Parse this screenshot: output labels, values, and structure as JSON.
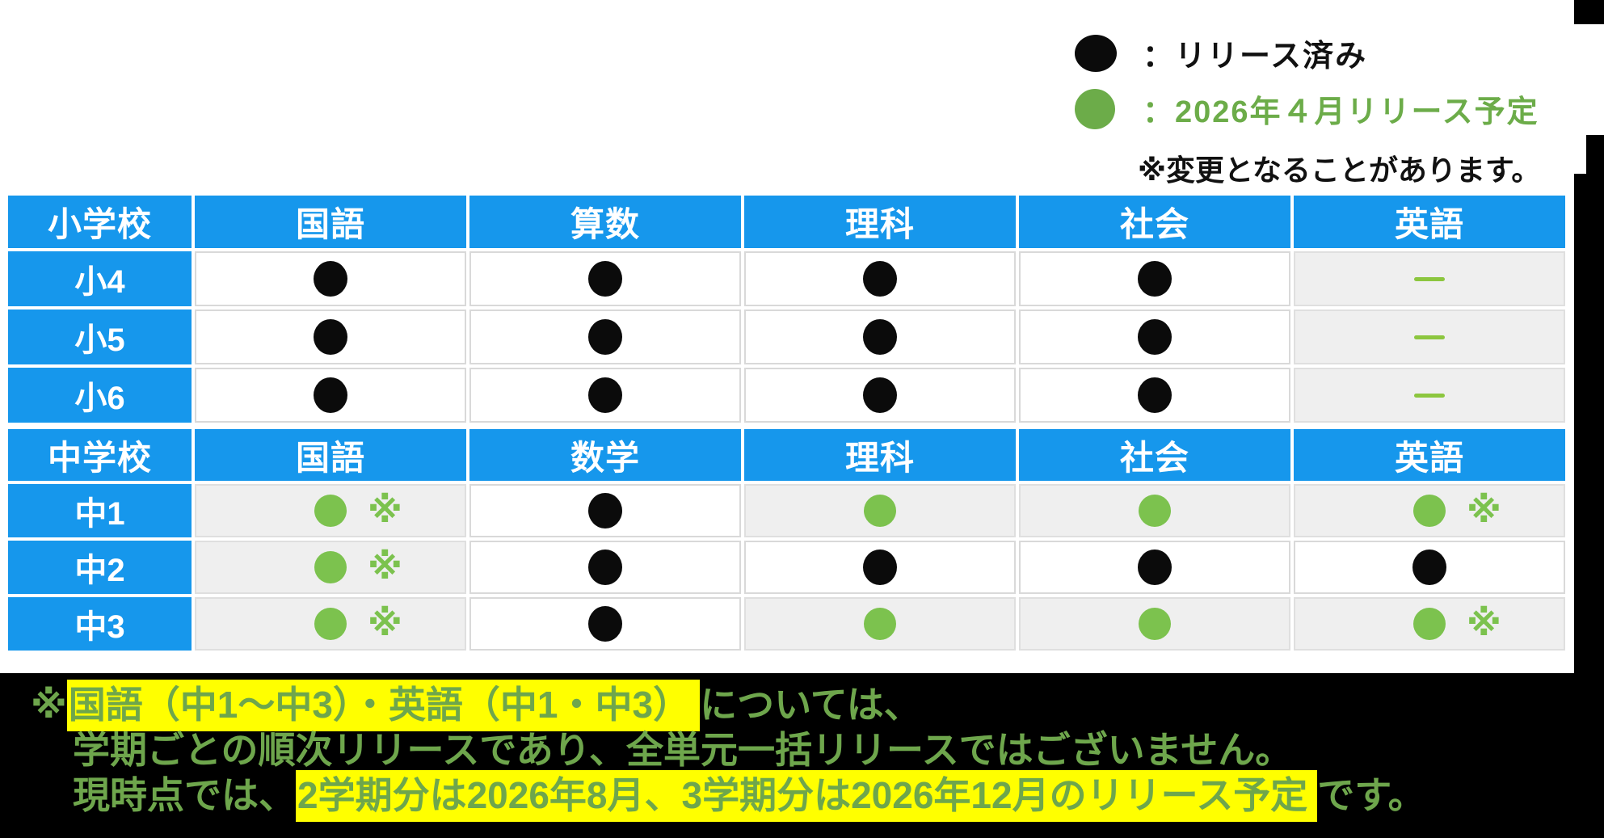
{
  "legend": {
    "items": [
      {
        "id": "released",
        "dot": "black",
        "label": "：リリース済み"
      },
      {
        "id": "planned",
        "dot": "green",
        "label": "：2026年４月リリース予定"
      }
    ],
    "note": "※変更となることがあります。"
  },
  "table": {
    "note_mark": "※",
    "sections": [
      {
        "id": "elementary",
        "headers": [
          "小学校",
          "国語",
          "算数",
          "理科",
          "社会",
          "英語"
        ],
        "rows": [
          {
            "grade": "小4",
            "cells": [
              {
                "mark": "dot-black"
              },
              {
                "mark": "dot-black"
              },
              {
                "mark": "dot-black"
              },
              {
                "mark": "dot-black"
              },
              {
                "mark": "dash",
                "shaded": true
              }
            ]
          },
          {
            "grade": "小5",
            "cells": [
              {
                "mark": "dot-black"
              },
              {
                "mark": "dot-black"
              },
              {
                "mark": "dot-black"
              },
              {
                "mark": "dot-black"
              },
              {
                "mark": "dash",
                "shaded": true
              }
            ]
          },
          {
            "grade": "小6",
            "cells": [
              {
                "mark": "dot-black"
              },
              {
                "mark": "dot-black"
              },
              {
                "mark": "dot-black"
              },
              {
                "mark": "dot-black"
              },
              {
                "mark": "dash",
                "shaded": true
              }
            ]
          }
        ]
      },
      {
        "id": "junior-high",
        "headers": [
          "中学校",
          "国語",
          "数学",
          "理科",
          "社会",
          "英語"
        ],
        "rows": [
          {
            "grade": "中1",
            "cells": [
              {
                "mark": "dot-green",
                "note": true,
                "shaded": true
              },
              {
                "mark": "dot-black"
              },
              {
                "mark": "dot-green",
                "shaded": true
              },
              {
                "mark": "dot-green",
                "shaded": true
              },
              {
                "mark": "dot-green",
                "note": true,
                "shaded": true
              }
            ]
          },
          {
            "grade": "中2",
            "cells": [
              {
                "mark": "dot-green",
                "note": true,
                "shaded": true
              },
              {
                "mark": "dot-black"
              },
              {
                "mark": "dot-black"
              },
              {
                "mark": "dot-black"
              },
              {
                "mark": "dot-black"
              }
            ]
          },
          {
            "grade": "中3",
            "cells": [
              {
                "mark": "dot-green",
                "note": true,
                "shaded": true
              },
              {
                "mark": "dot-black"
              },
              {
                "mark": "dot-green",
                "shaded": true
              },
              {
                "mark": "dot-green",
                "shaded": true
              },
              {
                "mark": "dot-green",
                "note": true,
                "shaded": true
              }
            ]
          }
        ]
      }
    ]
  },
  "footnote": {
    "line1_prefix": "※",
    "line1_highlight": "国語（中1～中3）・英語（中1・中3）",
    "line1_suffix": "については、",
    "line2": "学期ごとの順次リリースであり、全単元一括リリースではございません。",
    "line3_prefix": "現時点では、",
    "line3_highlight": "2学期分は2026年8月、3学期分は2026年12月のリリース予定",
    "line3_suffix": "です。"
  },
  "colors": {
    "header_blue": "#1697EC",
    "released_black": "#0B0B0B",
    "planned_green": "#7CC24E",
    "dash_green": "#8CC63F",
    "legend_green": "#6CAC49",
    "footnote_green": "#6EA64C",
    "highlight_yellow": "#FFFF00",
    "shaded_cell": "#EFEFEF"
  }
}
